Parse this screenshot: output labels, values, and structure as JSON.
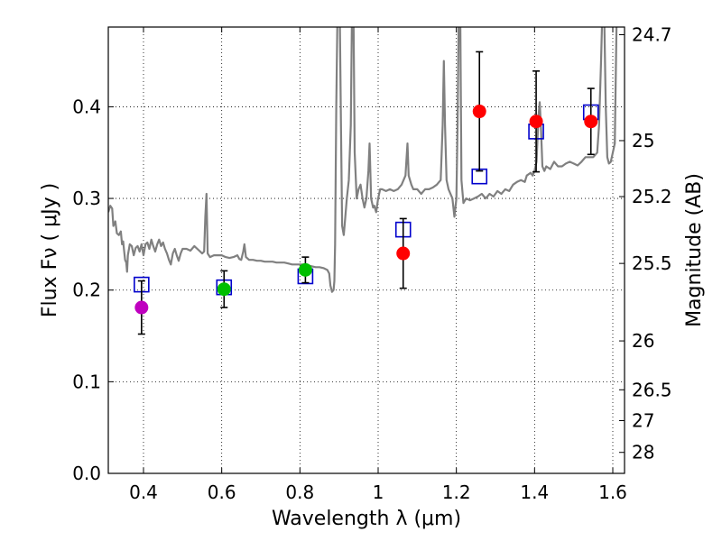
{
  "chart_data": {
    "type": "scatter",
    "title": "",
    "xlabel": "Wavelength  λ (μm)",
    "ylabel": "Flux  Fν  ( μJy )",
    "right_ylabel": "Magnitude (AB)",
    "xlim": [
      0.31,
      1.63
    ],
    "ylim": [
      0.0,
      0.487
    ],
    "grid": true,
    "x_ticks": [
      0.4,
      0.6,
      0.8,
      1.0,
      1.2,
      1.4,
      1.6
    ],
    "x_tick_labels": [
      "0.4",
      "0.6",
      "0.8",
      "1",
      "1.2",
      "1.4",
      "1.6"
    ],
    "y_ticks": [
      0.0,
      0.1,
      0.2,
      0.3,
      0.4
    ],
    "y_tick_labels": [
      "0.0",
      "0.1",
      "0.2",
      "0.3",
      "0.4"
    ],
    "right_ticks": [
      {
        "mag": 24.7,
        "label": "24.7"
      },
      {
        "mag": 25.0,
        "label": "25"
      },
      {
        "mag": 25.2,
        "label": "25.2"
      },
      {
        "mag": 25.5,
        "label": "25.5"
      },
      {
        "mag": 26.0,
        "label": "26"
      },
      {
        "mag": 26.5,
        "label": "26.5"
      },
      {
        "mag": 27.0,
        "label": "27"
      },
      {
        "mag": 28.0,
        "label": "28"
      }
    ],
    "observed": [
      {
        "x": 0.395,
        "y": 0.181,
        "err": 0.029,
        "color": "#bf00bf"
      },
      {
        "x": 0.606,
        "y": 0.201,
        "err": 0.02,
        "color": "#00bf00"
      },
      {
        "x": 0.814,
        "y": 0.222,
        "err": 0.014,
        "color": "#00bf00"
      },
      {
        "x": 1.064,
        "y": 0.24,
        "err": 0.038,
        "color": "#ff0000"
      },
      {
        "x": 1.259,
        "y": 0.395,
        "err": 0.065,
        "color": "#ff0000"
      },
      {
        "x": 1.404,
        "y": 0.384,
        "err": 0.055,
        "color": "#ff0000"
      },
      {
        "x": 1.544,
        "y": 0.384,
        "err": 0.036,
        "color": "#ff0000"
      }
    ],
    "model_photometry": [
      {
        "x": 0.395,
        "y": 0.206
      },
      {
        "x": 0.606,
        "y": 0.203
      },
      {
        "x": 0.814,
        "y": 0.215
      },
      {
        "x": 1.064,
        "y": 0.266
      },
      {
        "x": 1.259,
        "y": 0.324
      },
      {
        "x": 1.404,
        "y": 0.373
      },
      {
        "x": 1.544,
        "y": 0.394
      }
    ],
    "spectrum": {
      "color": "#808080",
      "points": [
        [
          0.31,
          0.285
        ],
        [
          0.315,
          0.292
        ],
        [
          0.32,
          0.289
        ],
        [
          0.323,
          0.27
        ],
        [
          0.328,
          0.275
        ],
        [
          0.332,
          0.262
        ],
        [
          0.337,
          0.26
        ],
        [
          0.342,
          0.264
        ],
        [
          0.345,
          0.25
        ],
        [
          0.348,
          0.253
        ],
        [
          0.35,
          0.245
        ],
        [
          0.353,
          0.233
        ],
        [
          0.356,
          0.23
        ],
        [
          0.358,
          0.22
        ],
        [
          0.36,
          0.238
        ],
        [
          0.365,
          0.25
        ],
        [
          0.37,
          0.248
        ],
        [
          0.375,
          0.238
        ],
        [
          0.38,
          0.246
        ],
        [
          0.385,
          0.248
        ],
        [
          0.39,
          0.242
        ],
        [
          0.395,
          0.25
        ],
        [
          0.4,
          0.238
        ],
        [
          0.405,
          0.25
        ],
        [
          0.41,
          0.252
        ],
        [
          0.415,
          0.245
        ],
        [
          0.42,
          0.255
        ],
        [
          0.425,
          0.248
        ],
        [
          0.43,
          0.242
        ],
        [
          0.435,
          0.25
        ],
        [
          0.44,
          0.255
        ],
        [
          0.445,
          0.248
        ],
        [
          0.45,
          0.252
        ],
        [
          0.455,
          0.245
        ],
        [
          0.46,
          0.24
        ],
        [
          0.465,
          0.233
        ],
        [
          0.47,
          0.228
        ],
        [
          0.475,
          0.24
        ],
        [
          0.48,
          0.245
        ],
        [
          0.485,
          0.238
        ],
        [
          0.49,
          0.232
        ],
        [
          0.495,
          0.24
        ],
        [
          0.5,
          0.245
        ],
        [
          0.51,
          0.245
        ],
        [
          0.52,
          0.243
        ],
        [
          0.53,
          0.248
        ],
        [
          0.54,
          0.244
        ],
        [
          0.55,
          0.24
        ],
        [
          0.555,
          0.242
        ],
        [
          0.558,
          0.28
        ],
        [
          0.561,
          0.305
        ],
        [
          0.564,
          0.24
        ],
        [
          0.57,
          0.236
        ],
        [
          0.58,
          0.238
        ],
        [
          0.59,
          0.238
        ],
        [
          0.6,
          0.238
        ],
        [
          0.61,
          0.236
        ],
        [
          0.62,
          0.235
        ],
        [
          0.63,
          0.236
        ],
        [
          0.64,
          0.238
        ],
        [
          0.645,
          0.234
        ],
        [
          0.65,
          0.233
        ],
        [
          0.655,
          0.242
        ],
        [
          0.658,
          0.25
        ],
        [
          0.662,
          0.236
        ],
        [
          0.67,
          0.233
        ],
        [
          0.68,
          0.233
        ],
        [
          0.69,
          0.232
        ],
        [
          0.7,
          0.232
        ],
        [
          0.71,
          0.231
        ],
        [
          0.72,
          0.231
        ],
        [
          0.73,
          0.231
        ],
        [
          0.74,
          0.23
        ],
        [
          0.75,
          0.23
        ],
        [
          0.76,
          0.23
        ],
        [
          0.77,
          0.229
        ],
        [
          0.78,
          0.228
        ],
        [
          0.79,
          0.228
        ],
        [
          0.8,
          0.228
        ],
        [
          0.81,
          0.228
        ],
        [
          0.82,
          0.227
        ],
        [
          0.83,
          0.226
        ],
        [
          0.84,
          0.225
        ],
        [
          0.85,
          0.225
        ],
        [
          0.86,
          0.224
        ],
        [
          0.87,
          0.222
        ],
        [
          0.875,
          0.218
        ],
        [
          0.878,
          0.205
        ],
        [
          0.882,
          0.198
        ],
        [
          0.886,
          0.2
        ],
        [
          0.888,
          0.21
        ],
        [
          0.89,
          0.25
        ],
        [
          0.893,
          0.4
        ],
        [
          0.896,
          0.5
        ],
        [
          0.902,
          0.5
        ],
        [
          0.905,
          0.38
        ],
        [
          0.908,
          0.27
        ],
        [
          0.912,
          0.26
        ],
        [
          0.915,
          0.275
        ],
        [
          0.92,
          0.3
        ],
        [
          0.925,
          0.32
        ],
        [
          0.93,
          0.38
        ],
        [
          0.933,
          0.5
        ],
        [
          0.937,
          0.5
        ],
        [
          0.94,
          0.35
        ],
        [
          0.945,
          0.3
        ],
        [
          0.95,
          0.31
        ],
        [
          0.955,
          0.315
        ],
        [
          0.96,
          0.3
        ],
        [
          0.965,
          0.29
        ],
        [
          0.97,
          0.3
        ],
        [
          0.975,
          0.33
        ],
        [
          0.978,
          0.36
        ],
        [
          0.982,
          0.3
        ],
        [
          0.987,
          0.29
        ],
        [
          0.99,
          0.292
        ],
        [
          0.995,
          0.285
        ],
        [
          1.0,
          0.3
        ],
        [
          1.005,
          0.31
        ],
        [
          1.01,
          0.31
        ],
        [
          1.02,
          0.308
        ],
        [
          1.03,
          0.31
        ],
        [
          1.04,
          0.308
        ],
        [
          1.05,
          0.31
        ],
        [
          1.06,
          0.315
        ],
        [
          1.07,
          0.325
        ],
        [
          1.075,
          0.36
        ],
        [
          1.078,
          0.325
        ],
        [
          1.085,
          0.315
        ],
        [
          1.09,
          0.31
        ],
        [
          1.1,
          0.31
        ],
        [
          1.11,
          0.305
        ],
        [
          1.12,
          0.31
        ],
        [
          1.13,
          0.31
        ],
        [
          1.14,
          0.312
        ],
        [
          1.15,
          0.315
        ],
        [
          1.16,
          0.32
        ],
        [
          1.165,
          0.38
        ],
        [
          1.168,
          0.45
        ],
        [
          1.171,
          0.38
        ],
        [
          1.175,
          0.32
        ],
        [
          1.18,
          0.31
        ],
        [
          1.19,
          0.3
        ],
        [
          1.195,
          0.28
        ],
        [
          1.2,
          0.3
        ],
        [
          1.203,
          0.38
        ],
        [
          1.206,
          0.5
        ],
        [
          1.21,
          0.5
        ],
        [
          1.213,
          0.32
        ],
        [
          1.218,
          0.295
        ],
        [
          1.225,
          0.3
        ],
        [
          1.235,
          0.298
        ],
        [
          1.245,
          0.3
        ],
        [
          1.255,
          0.302
        ],
        [
          1.265,
          0.305
        ],
        [
          1.275,
          0.3
        ],
        [
          1.285,
          0.305
        ],
        [
          1.295,
          0.302
        ],
        [
          1.305,
          0.308
        ],
        [
          1.315,
          0.305
        ],
        [
          1.325,
          0.31
        ],
        [
          1.335,
          0.308
        ],
        [
          1.345,
          0.315
        ],
        [
          1.355,
          0.318
        ],
        [
          1.365,
          0.32
        ],
        [
          1.375,
          0.318
        ],
        [
          1.38,
          0.325
        ],
        [
          1.39,
          0.328
        ],
        [
          1.395,
          0.325
        ],
        [
          1.4,
          0.33
        ],
        [
          1.405,
          0.34
        ],
        [
          1.41,
          0.39
        ],
        [
          1.413,
          0.405
        ],
        [
          1.416,
          0.38
        ],
        [
          1.42,
          0.335
        ],
        [
          1.425,
          0.33
        ],
        [
          1.43,
          0.335
        ],
        [
          1.44,
          0.332
        ],
        [
          1.45,
          0.34
        ],
        [
          1.46,
          0.335
        ],
        [
          1.47,
          0.335
        ],
        [
          1.48,
          0.338
        ],
        [
          1.49,
          0.34
        ],
        [
          1.5,
          0.338
        ],
        [
          1.51,
          0.336
        ],
        [
          1.52,
          0.34
        ],
        [
          1.53,
          0.345
        ],
        [
          1.54,
          0.345
        ],
        [
          1.55,
          0.345
        ],
        [
          1.56,
          0.35
        ],
        [
          1.565,
          0.38
        ],
        [
          1.57,
          0.45
        ],
        [
          1.573,
          0.5
        ],
        [
          1.578,
          0.5
        ],
        [
          1.582,
          0.4
        ],
        [
          1.586,
          0.345
        ],
        [
          1.59,
          0.338
        ],
        [
          1.595,
          0.34
        ],
        [
          1.6,
          0.35
        ],
        [
          1.605,
          0.36
        ],
        [
          1.61,
          0.5
        ],
        [
          1.615,
          0.5
        ],
        [
          1.62,
          0.5
        ],
        [
          1.63,
          0.5
        ]
      ]
    }
  }
}
